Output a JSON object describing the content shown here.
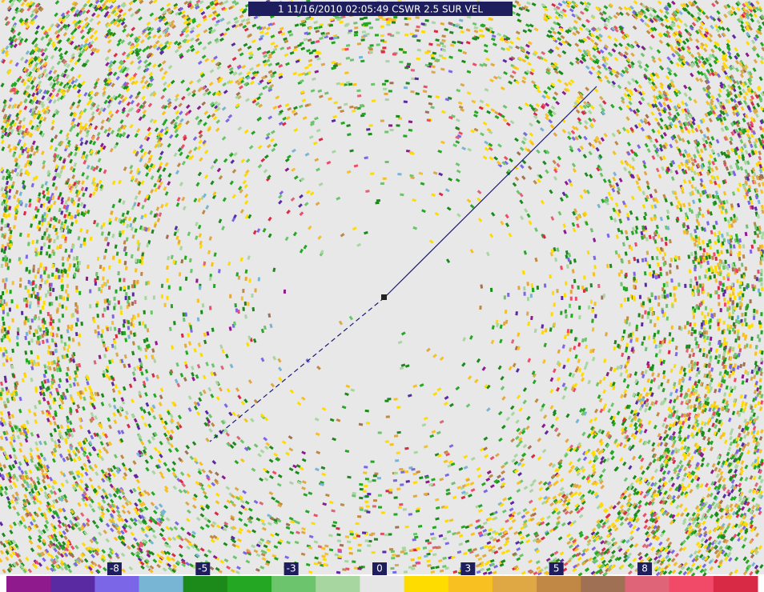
{
  "header": {
    "title": "1 11/16/2010 02:05:49 CSWR 2.5 SUR VEL"
  },
  "colorbar": {
    "colors": [
      "#8e1a8e",
      "#5a2aa2",
      "#7b66e8",
      "#78b4d4",
      "#1b8a1b",
      "#24a824",
      "#6cc46c",
      "#a8d6a0",
      "#e6e6e6",
      "#ffdc00",
      "#f8c020",
      "#e0a844",
      "#c08844",
      "#a07054",
      "#e06478",
      "#f04a68",
      "#d82a44"
    ],
    "labels": [
      null,
      null,
      -8,
      null,
      -5,
      null,
      -3,
      null,
      0,
      null,
      3,
      null,
      5,
      null,
      8,
      null,
      null
    ]
  }
}
